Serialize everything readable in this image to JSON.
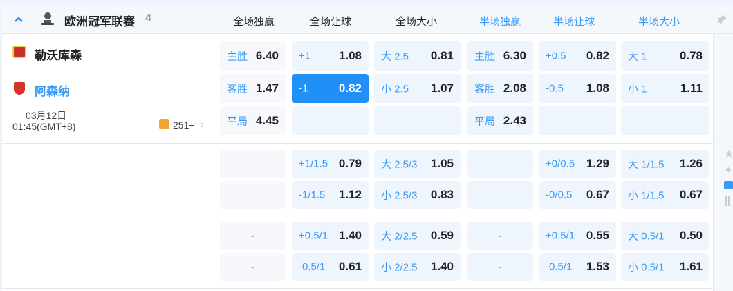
{
  "league": {
    "name": "欧洲冠军联赛",
    "count": "4"
  },
  "columns": [
    "全场独赢",
    "全场让球",
    "全场大小",
    "半场独赢",
    "半场让球",
    "半场大小"
  ],
  "match": {
    "home": "勒沃库森",
    "away": "阿森纳",
    "date": "03月12日",
    "time": "01:45(GMT+8)",
    "more_count": "251+"
  },
  "blocks": [
    [
      [
        {
          "l": "主胜",
          "v": "6.40"
        },
        {
          "l": "+1",
          "v": "1.08"
        },
        {
          "l": "大 2.5",
          "v": "0.81"
        },
        {
          "l": "主胜",
          "v": "6.30"
        },
        {
          "l": "+0.5",
          "v": "0.82"
        },
        {
          "l": "大 1",
          "v": "0.78"
        }
      ],
      [
        {
          "l": "客胜",
          "v": "1.47"
        },
        {
          "l": "-1",
          "v": "0.82",
          "selected": true
        },
        {
          "l": "小 2.5",
          "v": "1.07"
        },
        {
          "l": "客胜",
          "v": "2.08"
        },
        {
          "l": "-0.5",
          "v": "1.08"
        },
        {
          "l": "小 1",
          "v": "1.11"
        }
      ],
      [
        {
          "l": "平局",
          "v": "4.45"
        },
        {
          "d": "-"
        },
        {
          "d": "-"
        },
        {
          "l": "平局",
          "v": "2.43"
        },
        {
          "d": "-"
        },
        {
          "d": "-"
        }
      ]
    ],
    [
      [
        {
          "d": "-"
        },
        {
          "l": "+1/1.5",
          "v": "0.79"
        },
        {
          "l": "大 2.5/3",
          "v": "1.05"
        },
        {
          "d": "-"
        },
        {
          "l": "+0/0.5",
          "v": "1.29"
        },
        {
          "l": "大 1/1.5",
          "v": "1.26"
        }
      ],
      [
        {
          "d": "-"
        },
        {
          "l": "-1/1.5",
          "v": "1.12"
        },
        {
          "l": "小 2.5/3",
          "v": "0.83"
        },
        {
          "d": "-"
        },
        {
          "l": "-0/0.5",
          "v": "0.67"
        },
        {
          "l": "小 1/1.5",
          "v": "0.67"
        }
      ]
    ],
    [
      [
        {
          "d": "-"
        },
        {
          "l": "+0.5/1",
          "v": "1.40"
        },
        {
          "l": "大 2/2.5",
          "v": "0.59"
        },
        {
          "d": "-"
        },
        {
          "l": "+0.5/1",
          "v": "0.55"
        },
        {
          "l": "大 0.5/1",
          "v": "0.50"
        }
      ],
      [
        {
          "d": "-"
        },
        {
          "l": "-0.5/1",
          "v": "0.61"
        },
        {
          "l": "小 2/2.5",
          "v": "1.40"
        },
        {
          "d": "-"
        },
        {
          "l": "-0.5/1",
          "v": "1.53"
        },
        {
          "l": "小 0.5/1",
          "v": "1.61"
        }
      ]
    ]
  ],
  "colors": {
    "accent": "#2190f6",
    "cell": "#eff5fc"
  }
}
